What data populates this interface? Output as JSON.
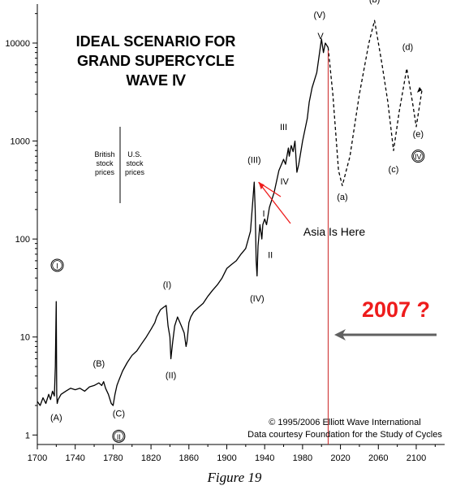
{
  "chart_data": {
    "type": "line",
    "title_lines": [
      "IDEAL SCENARIO FOR",
      "GRAND SUPERCYCLE",
      "WAVE Ⅳ"
    ],
    "y_scale": "log",
    "ylim": [
      0.8,
      25000
    ],
    "xlim": [
      1700,
      2130
    ],
    "x_ticks": [
      "1700",
      "1740",
      "1780",
      "1820",
      "1860",
      "1900",
      "1940",
      "1980",
      "2020",
      "2060",
      "2100"
    ],
    "x_tick_values": [
      1700,
      1740,
      1780,
      1820,
      1860,
      1900,
      1940,
      1980,
      2020,
      2060,
      2100
    ],
    "y_ticks": [
      "1",
      "10",
      "100",
      "1000",
      "10000"
    ],
    "y_tick_values": [
      1,
      10,
      100,
      1000,
      10000
    ],
    "grid": false,
    "series": [
      {
        "style": "solid",
        "x": [
          1700,
          1703,
          1706,
          1709,
          1712,
          1714,
          1716,
          1718,
          1719,
          1720,
          1720.5,
          1721,
          1722,
          1725,
          1730,
          1735,
          1740,
          1745,
          1750,
          1755,
          1760,
          1765,
          1768,
          1770,
          1772,
          1775,
          1778,
          1780,
          1782,
          1784,
          1786,
          1790,
          1795,
          1800,
          1805,
          1810,
          1815,
          1820,
          1824,
          1826,
          1830,
          1833,
          1836,
          1838,
          1840,
          1841,
          1843,
          1845,
          1848,
          1852,
          1855,
          1857,
          1858,
          1860,
          1862,
          1865,
          1870,
          1875,
          1880,
          1885,
          1890,
          1895,
          1900,
          1905,
          1910,
          1915,
          1920,
          1925,
          1929,
          1930,
          1931,
          1932,
          1933,
          1935,
          1937,
          1938,
          1940,
          1942,
          1945,
          1950,
          1955,
          1960,
          1962,
          1965,
          1966,
          1968,
          1970,
          1972,
          1974,
          1976,
          1980,
          1985,
          1987,
          1990,
          1995,
          2000,
          2002,
          2004,
          2007
        ],
        "y": [
          2.2,
          2.0,
          2.4,
          2.1,
          2.6,
          2.3,
          2.8,
          2.5,
          5,
          23,
          2.6,
          2.1,
          2.3,
          2.6,
          2.8,
          3.0,
          2.9,
          3.0,
          2.8,
          3.1,
          3.2,
          3.4,
          3.2,
          3.5,
          3.0,
          2.6,
          2.1,
          2.0,
          2.6,
          3.2,
          3.6,
          4.5,
          5.5,
          6.5,
          7.2,
          8.5,
          10,
          12,
          14,
          16,
          19,
          20,
          21,
          13,
          10,
          6.0,
          9,
          13,
          16,
          13,
          11,
          8.0,
          9,
          14,
          16,
          18,
          20,
          22,
          26,
          30,
          34,
          40,
          50,
          55,
          60,
          70,
          80,
          120,
          380,
          200,
          60,
          42,
          85,
          140,
          100,
          140,
          160,
          140,
          210,
          300,
          500,
          650,
          580,
          850,
          700,
          900,
          780,
          1000,
          480,
          580,
          1000,
          1700,
          2500,
          3500,
          5000,
          11000,
          8000,
          10000,
          9000
        ]
      },
      {
        "style": "dashed",
        "x": [
          2007,
          2012,
          2018,
          2022,
          2030,
          2040,
          2050,
          2056,
          2064,
          2070,
          2076,
          2082,
          2090,
          2096,
          2100,
          2106
        ],
        "y": [
          9000,
          3000,
          500,
          350,
          700,
          3000,
          10000,
          17000,
          6000,
          2500,
          800,
          2000,
          5500,
          2500,
          1400,
          3300
        ]
      }
    ],
    "wave_labels": [
      {
        "text": "I",
        "circled": true,
        "x": 1721,
        "y": 50
      },
      {
        "text": "(A)",
        "circled": false,
        "x": 1720,
        "y": 1.4
      },
      {
        "text": "(B)",
        "circled": false,
        "x": 1765,
        "y": 5.0
      },
      {
        "text": "(C)",
        "circled": false,
        "x": 1786,
        "y": 1.55
      },
      {
        "text": "II",
        "circled": true,
        "x": 1786,
        "y": 0.9
      },
      {
        "text": "(I)",
        "circled": false,
        "x": 1837,
        "y": 32
      },
      {
        "text": "(II)",
        "circled": false,
        "x": 1841,
        "y": 3.8
      },
      {
        "text": "(III)",
        "circled": false,
        "x": 1929,
        "y": 600
      },
      {
        "text": "(IV)",
        "circled": false,
        "x": 1932,
        "y": 23
      },
      {
        "text": "I",
        "circled": false,
        "x": 1939,
        "y": 170
      },
      {
        "text": "II",
        "circled": false,
        "x": 1946,
        "y": 64
      },
      {
        "text": "III",
        "circled": false,
        "x": 1960,
        "y": 1300
      },
      {
        "text": "IV",
        "circled": false,
        "x": 1961,
        "y": 360
      },
      {
        "text": "III",
        "circled": true,
        "x": 1998,
        "y": 30000
      },
      {
        "text": "(V)",
        "circled": false,
        "x": 1998,
        "y": 18000
      },
      {
        "text": "V",
        "circled": false,
        "x": 1999,
        "y": 11000
      },
      {
        "text": "(a)",
        "circled": false,
        "x": 2022,
        "y": 250
      },
      {
        "text": "(b)",
        "circled": false,
        "x": 2056,
        "y": 26000
      },
      {
        "text": "(c)",
        "circled": false,
        "x": 2076,
        "y": 480
      },
      {
        "text": "(d)",
        "circled": false,
        "x": 2091,
        "y": 8500
      },
      {
        "text": "(e)",
        "circled": false,
        "x": 2102,
        "y": 1100
      },
      {
        "text": "IV",
        "circled": true,
        "x": 2102,
        "y": 650
      }
    ],
    "annotations": {
      "stock_left": [
        "British",
        "stock",
        "prices"
      ],
      "stock_right": [
        "U.S.",
        "stock",
        "prices"
      ],
      "asia_label": "Asia Is Here",
      "year_label": "2007 ?",
      "copyright": "© 1995/2006 Elliott Wave International",
      "courtesy": "Data courtesy Foundation for the Study of Cycles",
      "marker_x": 2007
    },
    "colors": {
      "line": "#000000",
      "marker": "#cc2222",
      "callout": "#ee1c1c",
      "year_text": "#ee1c1c",
      "arrow": "#606060"
    }
  },
  "figure_caption": "Figure 19"
}
